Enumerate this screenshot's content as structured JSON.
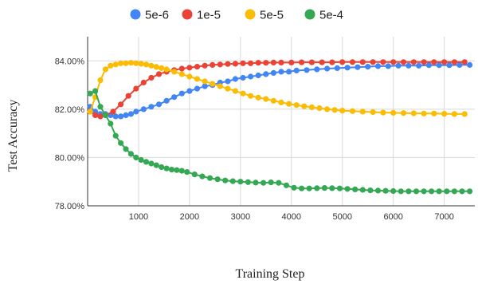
{
  "chart_data": {
    "type": "line",
    "title": "",
    "xlabel": "Training Step",
    "ylabel": "Test Accuracy",
    "xlim": [
      0,
      7600
    ],
    "ylim": [
      78.0,
      85.0
    ],
    "x_ticks": [
      1000,
      2000,
      3000,
      4000,
      5000,
      6000,
      7000
    ],
    "y_ticks": [
      78,
      80,
      82,
      84
    ],
    "y_tick_labels": [
      "78.00%",
      "80.00%",
      "82.00%",
      "84.00%"
    ],
    "legend_position": "top-center",
    "grid": true,
    "series": [
      {
        "name": "5e-6",
        "color": "#4285f4",
        "points": [
          [
            50,
            82.1
          ],
          [
            150,
            81.9
          ],
          [
            250,
            81.8
          ],
          [
            350,
            81.8
          ],
          [
            450,
            81.75
          ],
          [
            550,
            81.7
          ],
          [
            650,
            81.7
          ],
          [
            750,
            81.75
          ],
          [
            850,
            81.8
          ],
          [
            950,
            81.9
          ],
          [
            1100,
            82.0
          ],
          [
            1250,
            82.1
          ],
          [
            1400,
            82.2
          ],
          [
            1550,
            82.35
          ],
          [
            1700,
            82.5
          ],
          [
            1850,
            82.65
          ],
          [
            2000,
            82.75
          ],
          [
            2150,
            82.85
          ],
          [
            2300,
            82.95
          ],
          [
            2450,
            83.0
          ],
          [
            2600,
            83.1
          ],
          [
            2750,
            83.15
          ],
          [
            2900,
            83.25
          ],
          [
            3050,
            83.3
          ],
          [
            3200,
            83.35
          ],
          [
            3350,
            83.4
          ],
          [
            3500,
            83.45
          ],
          [
            3650,
            83.5
          ],
          [
            3800,
            83.55
          ],
          [
            3950,
            83.55
          ],
          [
            4100,
            83.6
          ],
          [
            4300,
            83.62
          ],
          [
            4500,
            83.65
          ],
          [
            4700,
            83.68
          ],
          [
            4900,
            83.7
          ],
          [
            5100,
            83.72
          ],
          [
            5300,
            83.74
          ],
          [
            5500,
            83.76
          ],
          [
            5700,
            83.78
          ],
          [
            5900,
            83.78
          ],
          [
            6100,
            83.8
          ],
          [
            6300,
            83.8
          ],
          [
            6500,
            83.8
          ],
          [
            6700,
            83.82
          ],
          [
            6900,
            83.82
          ],
          [
            7100,
            83.82
          ],
          [
            7300,
            83.83
          ],
          [
            7500,
            83.83
          ]
        ]
      },
      {
        "name": "1e-5",
        "color": "#ea4335",
        "points": [
          [
            50,
            81.9
          ],
          [
            150,
            81.75
          ],
          [
            250,
            81.7
          ],
          [
            350,
            81.75
          ],
          [
            500,
            81.9
          ],
          [
            650,
            82.2
          ],
          [
            800,
            82.55
          ],
          [
            950,
            82.85
          ],
          [
            1100,
            83.1
          ],
          [
            1250,
            83.3
          ],
          [
            1400,
            83.45
          ],
          [
            1550,
            83.55
          ],
          [
            1700,
            83.62
          ],
          [
            1850,
            83.68
          ],
          [
            2000,
            83.72
          ],
          [
            2150,
            83.76
          ],
          [
            2300,
            83.8
          ],
          [
            2450,
            83.83
          ],
          [
            2600,
            83.85
          ],
          [
            2750,
            83.87
          ],
          [
            2900,
            83.88
          ],
          [
            3050,
            83.9
          ],
          [
            3200,
            83.9
          ],
          [
            3350,
            83.92
          ],
          [
            3500,
            83.92
          ],
          [
            3650,
            83.93
          ],
          [
            3800,
            83.93
          ],
          [
            4000,
            83.93
          ],
          [
            4200,
            83.94
          ],
          [
            4400,
            83.94
          ],
          [
            4600,
            83.94
          ],
          [
            4800,
            83.94
          ],
          [
            5000,
            83.95
          ],
          [
            5200,
            83.95
          ],
          [
            5400,
            83.95
          ],
          [
            5600,
            83.95
          ],
          [
            5800,
            83.95
          ],
          [
            6000,
            83.95
          ],
          [
            6200,
            83.95
          ],
          [
            6400,
            83.95
          ],
          [
            6600,
            83.95
          ],
          [
            6800,
            83.95
          ],
          [
            7000,
            83.95
          ],
          [
            7200,
            83.95
          ],
          [
            7400,
            83.95
          ]
        ]
      },
      {
        "name": "5e-5",
        "color": "#fbbc04",
        "points": [
          [
            50,
            81.9
          ],
          [
            150,
            82.5
          ],
          [
            250,
            83.2
          ],
          [
            350,
            83.65
          ],
          [
            450,
            83.8
          ],
          [
            550,
            83.85
          ],
          [
            650,
            83.9
          ],
          [
            750,
            83.9
          ],
          [
            850,
            83.92
          ],
          [
            950,
            83.9
          ],
          [
            1050,
            83.88
          ],
          [
            1150,
            83.85
          ],
          [
            1250,
            83.8
          ],
          [
            1350,
            83.75
          ],
          [
            1450,
            83.7
          ],
          [
            1550,
            83.65
          ],
          [
            1700,
            83.55
          ],
          [
            1850,
            83.45
          ],
          [
            2000,
            83.35
          ],
          [
            2150,
            83.25
          ],
          [
            2300,
            83.15
          ],
          [
            2450,
            83.05
          ],
          [
            2600,
            82.95
          ],
          [
            2750,
            82.85
          ],
          [
            2900,
            82.75
          ],
          [
            3050,
            82.65
          ],
          [
            3200,
            82.55
          ],
          [
            3350,
            82.48
          ],
          [
            3500,
            82.42
          ],
          [
            3650,
            82.35
          ],
          [
            3800,
            82.28
          ],
          [
            3950,
            82.22
          ],
          [
            4100,
            82.17
          ],
          [
            4250,
            82.12
          ],
          [
            4400,
            82.08
          ],
          [
            4550,
            82.04
          ],
          [
            4700,
            82.0
          ],
          [
            4850,
            81.97
          ],
          [
            5000,
            81.94
          ],
          [
            5200,
            81.92
          ],
          [
            5400,
            81.9
          ],
          [
            5600,
            81.88
          ],
          [
            5800,
            81.86
          ],
          [
            6000,
            81.85
          ],
          [
            6200,
            81.84
          ],
          [
            6400,
            81.83
          ],
          [
            6600,
            81.82
          ],
          [
            6800,
            81.82
          ],
          [
            7000,
            81.81
          ],
          [
            7200,
            81.8
          ],
          [
            7400,
            81.8
          ]
        ]
      },
      {
        "name": "5e-4",
        "color": "#34a853",
        "points": [
          [
            50,
            82.65
          ],
          [
            150,
            82.75
          ],
          [
            250,
            82.1
          ],
          [
            350,
            81.75
          ],
          [
            450,
            81.4
          ],
          [
            550,
            80.9
          ],
          [
            650,
            80.6
          ],
          [
            750,
            80.35
          ],
          [
            850,
            80.15
          ],
          [
            950,
            80.0
          ],
          [
            1050,
            79.9
          ],
          [
            1150,
            79.82
          ],
          [
            1250,
            79.75
          ],
          [
            1350,
            79.68
          ],
          [
            1450,
            79.6
          ],
          [
            1550,
            79.55
          ],
          [
            1650,
            79.5
          ],
          [
            1750,
            79.48
          ],
          [
            1850,
            79.45
          ],
          [
            1950,
            79.4
          ],
          [
            2100,
            79.3
          ],
          [
            2250,
            79.22
          ],
          [
            2400,
            79.15
          ],
          [
            2550,
            79.1
          ],
          [
            2700,
            79.05
          ],
          [
            2850,
            79.02
          ],
          [
            3000,
            79.0
          ],
          [
            3150,
            78.98
          ],
          [
            3300,
            78.96
          ],
          [
            3450,
            78.95
          ],
          [
            3600,
            78.97
          ],
          [
            3750,
            78.95
          ],
          [
            3900,
            78.85
          ],
          [
            4050,
            78.75
          ],
          [
            4200,
            78.72
          ],
          [
            4350,
            78.72
          ],
          [
            4500,
            78.73
          ],
          [
            4650,
            78.74
          ],
          [
            4800,
            78.73
          ],
          [
            4950,
            78.72
          ],
          [
            5100,
            78.7
          ],
          [
            5250,
            78.68
          ],
          [
            5400,
            78.66
          ],
          [
            5550,
            78.64
          ],
          [
            5700,
            78.63
          ],
          [
            5850,
            78.62
          ],
          [
            6000,
            78.61
          ],
          [
            6150,
            78.6
          ],
          [
            6300,
            78.6
          ],
          [
            6450,
            78.6
          ],
          [
            6600,
            78.6
          ],
          [
            6750,
            78.6
          ],
          [
            6900,
            78.6
          ],
          [
            7050,
            78.6
          ],
          [
            7200,
            78.6
          ],
          [
            7350,
            78.6
          ],
          [
            7500,
            78.6
          ]
        ]
      }
    ]
  }
}
